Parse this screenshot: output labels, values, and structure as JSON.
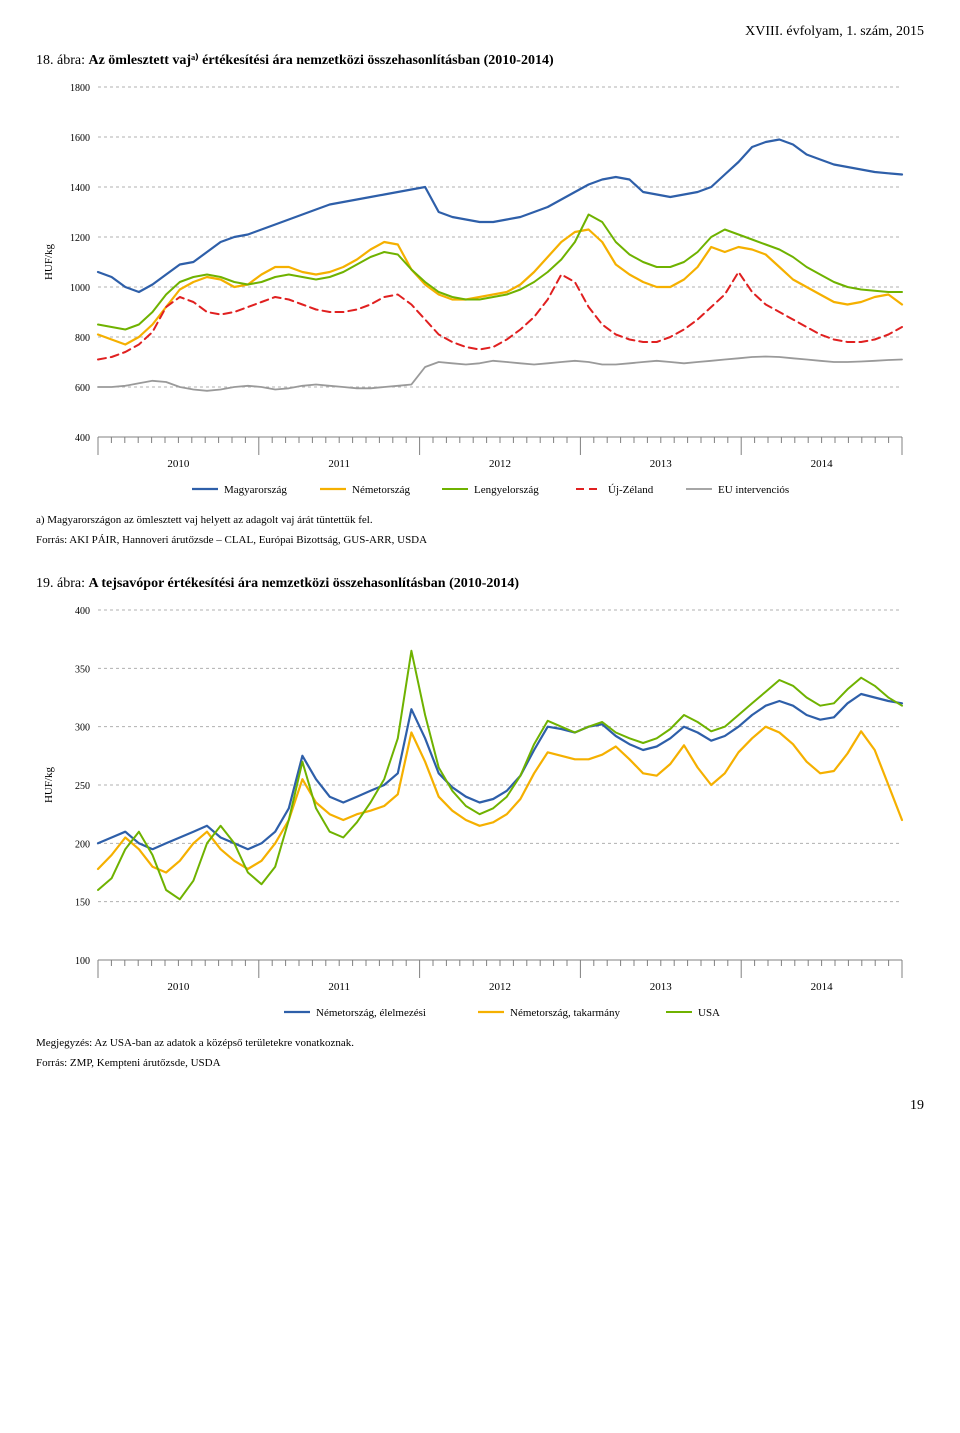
{
  "header": {
    "right_text": "XVIII. évfolyam, 1. szám, 2015"
  },
  "chart1": {
    "type": "line",
    "title_prefix": "18. ábra: ",
    "title_bold": "Az ömlesztett vajᵃ⁾ értékesítési ára nemzetközi összehasonlításban (2010-2014)",
    "ylabel": "HUF/kg",
    "ylim": [
      400,
      1800
    ],
    "ytick_step": 200,
    "years": [
      "2010",
      "2011",
      "2012",
      "2013",
      "2014"
    ],
    "n_points": 60,
    "background_color": "#ffffff",
    "grid_color": "#b0b0b0",
    "axis_color": "#808080",
    "axis_label_fontsize": 10,
    "series": [
      {
        "name": "Magyarország",
        "color": "#2e5fa9",
        "width": 2.2,
        "dash": "",
        "data": [
          1060,
          1040,
          1000,
          980,
          1010,
          1050,
          1090,
          1100,
          1140,
          1180,
          1200,
          1210,
          1230,
          1250,
          1270,
          1290,
          1310,
          1330,
          1340,
          1350,
          1360,
          1370,
          1380,
          1390,
          1400,
          1300,
          1280,
          1270,
          1260,
          1260,
          1270,
          1280,
          1300,
          1320,
          1350,
          1380,
          1410,
          1430,
          1440,
          1430,
          1380,
          1370,
          1360,
          1370,
          1380,
          1400,
          1450,
          1500,
          1560,
          1580,
          1590,
          1570,
          1530,
          1510,
          1490,
          1480,
          1470,
          1460,
          1455,
          1450
        ]
      },
      {
        "name": "Németország",
        "color": "#f5b000",
        "width": 2.2,
        "dash": "",
        "data": [
          810,
          790,
          770,
          800,
          850,
          920,
          990,
          1020,
          1040,
          1030,
          1000,
          1010,
          1050,
          1080,
          1080,
          1060,
          1050,
          1060,
          1080,
          1110,
          1150,
          1180,
          1170,
          1070,
          1010,
          970,
          950,
          950,
          960,
          970,
          980,
          1010,
          1060,
          1120,
          1180,
          1220,
          1230,
          1180,
          1090,
          1050,
          1020,
          1000,
          1000,
          1030,
          1080,
          1160,
          1140,
          1160,
          1150,
          1130,
          1080,
          1030,
          1000,
          970,
          940,
          930,
          940,
          960,
          970,
          930
        ]
      },
      {
        "name": "Lengyelország",
        "color": "#6fb200",
        "width": 2.0,
        "dash": "",
        "data": [
          850,
          840,
          830,
          850,
          900,
          970,
          1020,
          1040,
          1050,
          1040,
          1020,
          1010,
          1020,
          1040,
          1050,
          1040,
          1030,
          1040,
          1060,
          1090,
          1120,
          1140,
          1130,
          1070,
          1020,
          980,
          960,
          950,
          950,
          960,
          970,
          990,
          1020,
          1060,
          1110,
          1180,
          1290,
          1260,
          1180,
          1130,
          1100,
          1080,
          1080,
          1100,
          1140,
          1200,
          1230,
          1210,
          1190,
          1170,
          1150,
          1120,
          1080,
          1050,
          1020,
          1000,
          990,
          985,
          980,
          980
        ]
      },
      {
        "name": "Új-Zéland",
        "color": "#e02020",
        "width": 2.0,
        "dash": "8,5",
        "data": [
          710,
          720,
          740,
          770,
          820,
          920,
          960,
          940,
          900,
          890,
          900,
          920,
          940,
          960,
          950,
          930,
          910,
          900,
          900,
          910,
          930,
          960,
          970,
          930,
          870,
          810,
          780,
          760,
          750,
          760,
          790,
          830,
          880,
          950,
          1050,
          1020,
          920,
          850,
          810,
          790,
          780,
          780,
          800,
          830,
          870,
          920,
          970,
          1060,
          980,
          930,
          900,
          870,
          840,
          810,
          790,
          780,
          780,
          790,
          810,
          840
        ]
      },
      {
        "name": "EU intervenciós",
        "color": "#9a9a9a",
        "width": 1.8,
        "dash": "",
        "data": [
          600,
          600,
          605,
          615,
          625,
          620,
          600,
          590,
          585,
          590,
          600,
          605,
          600,
          590,
          595,
          605,
          610,
          605,
          600,
          595,
          595,
          600,
          605,
          610,
          680,
          700,
          695,
          690,
          695,
          705,
          700,
          695,
          690,
          695,
          700,
          705,
          700,
          690,
          690,
          695,
          700,
          705,
          700,
          695,
          700,
          705,
          710,
          715,
          720,
          722,
          720,
          715,
          710,
          705,
          700,
          700,
          702,
          705,
          708,
          710
        ]
      }
    ],
    "footnote_a": "a) Magyarországon az ömlesztett vaj helyett az adagolt vaj árát tüntettük fel.",
    "footnote_src": "Forrás: AKI PÁIR, Hannoveri árutőzsde – CLAL, Európai Bizottság, GUS-ARR, USDA"
  },
  "chart2": {
    "type": "line",
    "title_prefix": "19. ábra: ",
    "title_bold": "A tejsavópor értékesítési ára nemzetközi összehasonlításban (2010-2014)",
    "ylabel": "HUF/kg",
    "ylim": [
      100,
      400
    ],
    "ytick_step": 50,
    "years": [
      "2010",
      "2011",
      "2012",
      "2013",
      "2014"
    ],
    "n_points": 60,
    "background_color": "#ffffff",
    "grid_color": "#b0b0b0",
    "axis_color": "#808080",
    "axis_label_fontsize": 10,
    "series": [
      {
        "name": "Németország, élelmezési",
        "color": "#2e5fa9",
        "width": 2.2,
        "dash": "",
        "data": [
          200,
          205,
          210,
          200,
          195,
          200,
          205,
          210,
          215,
          205,
          200,
          195,
          200,
          210,
          230,
          275,
          255,
          240,
          235,
          240,
          245,
          250,
          260,
          315,
          290,
          260,
          248,
          240,
          235,
          238,
          245,
          258,
          280,
          300,
          298,
          295,
          300,
          302,
          292,
          285,
          280,
          283,
          290,
          300,
          295,
          288,
          292,
          300,
          310,
          318,
          322,
          318,
          310,
          306,
          308,
          320,
          328,
          325,
          322,
          320
        ]
      },
      {
        "name": "Németország, takarmány",
        "color": "#f5b000",
        "width": 2.2,
        "dash": "",
        "data": [
          178,
          190,
          205,
          195,
          180,
          175,
          185,
          200,
          210,
          195,
          185,
          178,
          185,
          200,
          220,
          255,
          235,
          225,
          220,
          225,
          228,
          232,
          242,
          295,
          270,
          240,
          228,
          220,
          215,
          218,
          225,
          238,
          260,
          278,
          275,
          272,
          272,
          276,
          283,
          272,
          260,
          258,
          268,
          284,
          265,
          250,
          260,
          278,
          290,
          300,
          295,
          285,
          270,
          260,
          262,
          277,
          296,
          280,
          250,
          220
        ]
      },
      {
        "name": "USA",
        "color": "#6fb200",
        "width": 2.0,
        "dash": "",
        "data": [
          160,
          170,
          195,
          210,
          190,
          160,
          152,
          168,
          200,
          215,
          200,
          175,
          165,
          180,
          220,
          270,
          230,
          210,
          205,
          218,
          235,
          255,
          290,
          365,
          310,
          265,
          245,
          232,
          225,
          230,
          240,
          258,
          285,
          305,
          300,
          295,
          300,
          304,
          295,
          290,
          286,
          290,
          298,
          310,
          304,
          296,
          300,
          310,
          320,
          330,
          340,
          335,
          325,
          318,
          320,
          332,
          342,
          335,
          325,
          318
        ]
      }
    ],
    "footnote_note": "Megjegyzés: Az USA-ban az adatok a középső területekre vonatkoznak.",
    "footnote_src": "Forrás: ZMP, Kempteni árutőzsde, USDA"
  },
  "page_number": "19"
}
